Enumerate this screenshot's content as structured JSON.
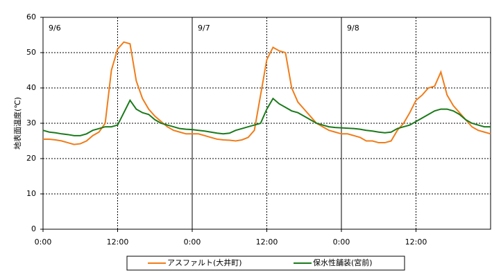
{
  "chart_data": {
    "type": "line",
    "y_label": "地表面温度(℃)",
    "x": [
      0,
      1,
      2,
      3,
      4,
      5,
      6,
      7,
      8,
      9,
      10,
      11,
      12,
      13,
      14,
      15,
      16,
      17,
      18,
      19,
      20,
      21,
      22,
      23,
      24,
      25,
      26,
      27,
      28,
      29,
      30,
      31,
      32,
      33,
      34,
      35,
      36,
      37,
      38,
      39,
      40,
      41,
      42,
      43,
      44,
      45,
      46,
      47,
      48,
      49,
      50,
      51,
      52,
      53,
      54,
      55,
      56,
      57,
      58,
      59,
      60,
      61,
      62,
      63,
      64,
      65,
      66,
      67,
      68,
      69,
      70,
      71,
      72
    ],
    "series": [
      {
        "name": "アスファルト(大井町)",
        "color": "#f07c18",
        "values": [
          25.5,
          25.5,
          25.3,
          25,
          24.5,
          24,
          24.2,
          25,
          26.5,
          27.5,
          30,
          45,
          51,
          53,
          52.5,
          42,
          37,
          34,
          32,
          30.5,
          29,
          28,
          27.5,
          27,
          27,
          27,
          26.5,
          26,
          25.5,
          25.3,
          25.2,
          25,
          25.3,
          26,
          28,
          38,
          48,
          51.5,
          50.5,
          50,
          40,
          36,
          34,
          32,
          30,
          29,
          28,
          27.5,
          27,
          27,
          26.5,
          26,
          25,
          25,
          24.5,
          24.5,
          25,
          28,
          30,
          33,
          36.5,
          38,
          40,
          40.5,
          44.5,
          38,
          35,
          33,
          31,
          29,
          28,
          27.5,
          27
        ]
      },
      {
        "name": "保水性舗装(宮前)",
        "color": "#1a7a1a",
        "values": [
          28,
          27.5,
          27.3,
          27,
          26.8,
          26.5,
          26.5,
          27,
          28,
          28.5,
          29,
          29,
          29.5,
          33,
          36.5,
          34,
          33,
          32.5,
          31,
          30,
          29.5,
          29,
          28.5,
          28.3,
          28.2,
          28,
          27.8,
          27.5,
          27.2,
          27,
          27.2,
          28,
          28.5,
          29,
          29.5,
          30,
          34,
          37,
          35.5,
          34.5,
          33.5,
          33,
          32,
          31,
          30,
          29.5,
          29,
          28.8,
          28.7,
          28.6,
          28.5,
          28.3,
          28,
          27.8,
          27.5,
          27.3,
          27.5,
          28.5,
          29,
          29.5,
          30.5,
          31.5,
          32.5,
          33.5,
          34,
          34,
          33.5,
          32.5,
          31,
          30,
          29.5,
          29,
          29
        ]
      }
    ],
    "xlim": [
      0,
      72
    ],
    "xticks": [
      {
        "value": 0,
        "label": "0:00"
      },
      {
        "value": 12,
        "label": "12:00"
      },
      {
        "value": 24,
        "label": "0:00"
      },
      {
        "value": 36,
        "label": "12:00"
      },
      {
        "value": 48,
        "label": "0:00"
      },
      {
        "value": 60,
        "label": "12:00"
      }
    ],
    "ylim": [
      0,
      60
    ],
    "yticks": [
      0,
      10,
      20,
      30,
      40,
      50,
      60
    ],
    "annotations": [
      {
        "text": "9/6",
        "x": 0
      },
      {
        "text": "9/7",
        "x": 24
      },
      {
        "text": "9/8",
        "x": 48
      }
    ],
    "grid": true,
    "legend": "bottom"
  }
}
